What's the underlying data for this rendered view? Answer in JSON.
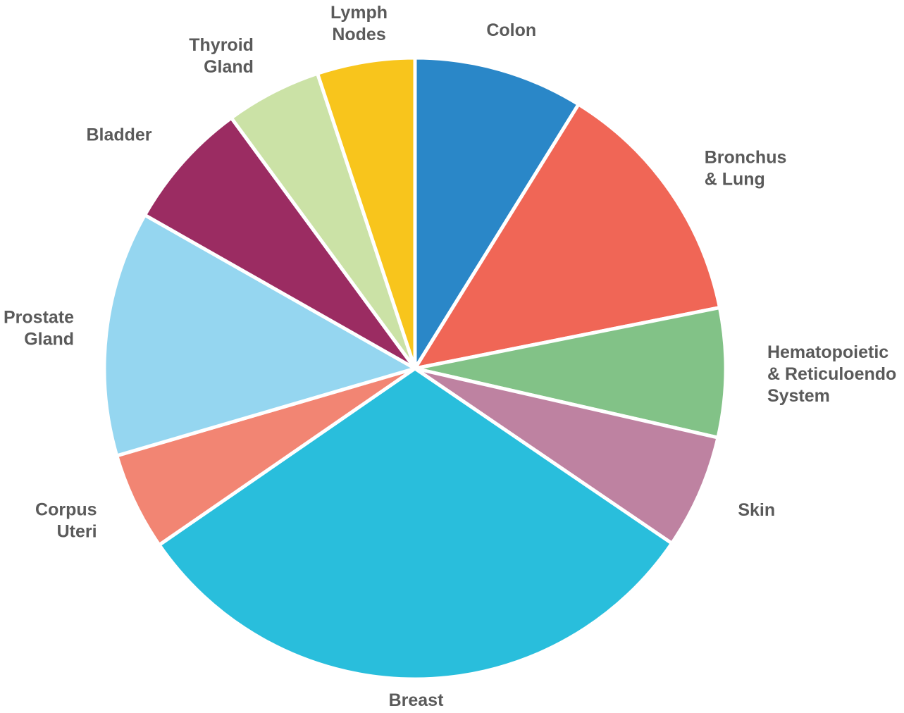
{
  "chart_data": {
    "type": "pie",
    "start_angle_deg": 0,
    "direction": "clockwise",
    "slices": [
      {
        "label": [
          "Colon"
        ],
        "value": 9.2,
        "color": "#2a87c8"
      },
      {
        "label": [
          "Bronchus",
          "& Lung"
        ],
        "value": 13.6,
        "color": "#f06656"
      },
      {
        "label": [
          "Hematopoietic",
          "& Reticuloendo",
          "System"
        ],
        "value": 7.0,
        "color": "#82c287"
      },
      {
        "label": [
          "Skin"
        ],
        "value": 6.2,
        "color": "#be82a1"
      },
      {
        "label": [
          "Breast"
        ],
        "value": 32.2,
        "color": "#29bedc"
      },
      {
        "label": [
          "Corpus",
          "Uteri"
        ],
        "value": 5.3,
        "color": "#f28573"
      },
      {
        "label": [
          "Prostate",
          "Gland"
        ],
        "value": 13.3,
        "color": "#95d6f0"
      },
      {
        "label": [
          "Bladder"
        ],
        "value": 7.0,
        "color": "#9b2c62"
      },
      {
        "label": [
          "Thyroid",
          "Gland"
        ],
        "value": 5.2,
        "color": "#cbe2a6"
      },
      {
        "label": [
          "Lymph",
          "Nodes"
        ],
        "value": 5.3,
        "color": "#f8c51c"
      }
    ]
  }
}
